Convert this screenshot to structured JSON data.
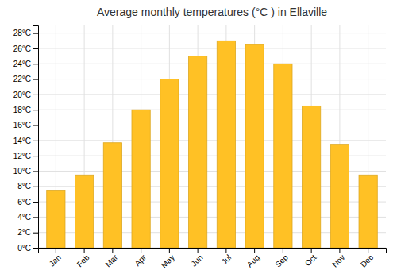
{
  "chart_data": {
    "type": "bar",
    "title": "Average monthly temperatures (°C ) in Ellaville",
    "categories": [
      "Jan",
      "Feb",
      "Mar",
      "Apr",
      "May",
      "Jun",
      "Jul",
      "Aug",
      "Sep",
      "Oct",
      "Nov",
      "Dec"
    ],
    "values": [
      7.5,
      9.5,
      13.7,
      18.0,
      22.0,
      25.0,
      27.0,
      26.5,
      24.0,
      18.5,
      13.5,
      9.5
    ],
    "color": "#FFC125",
    "ylim": [
      0,
      29
    ],
    "yticks": [
      {
        "value": 0,
        "label": "0°C"
      },
      {
        "value": 2,
        "label": "2°C"
      },
      {
        "value": 4,
        "label": "4°C"
      },
      {
        "value": 6,
        "label": "6°C"
      },
      {
        "value": 8,
        "label": "8°C"
      },
      {
        "value": 10,
        "label": "10°C"
      },
      {
        "value": 12,
        "label": "12°C"
      },
      {
        "value": 14,
        "label": "14°C"
      },
      {
        "value": 16,
        "label": "16°C"
      },
      {
        "value": 18,
        "label": "18°C"
      },
      {
        "value": 20,
        "label": "20°C"
      },
      {
        "value": 22,
        "label": "22°C"
      },
      {
        "value": 24,
        "label": "24°C"
      },
      {
        "value": 26,
        "label": "26°C"
      },
      {
        "value": 28,
        "label": "28°C"
      }
    ],
    "grid": true
  }
}
